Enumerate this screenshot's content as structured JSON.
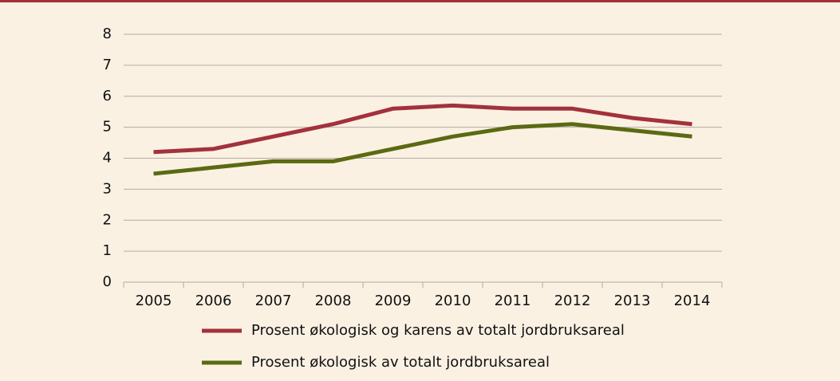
{
  "chart_data": {
    "type": "line",
    "categories": [
      "2005",
      "2006",
      "2007",
      "2008",
      "2009",
      "2010",
      "2011",
      "2012",
      "2013",
      "2014"
    ],
    "series": [
      {
        "name": "Prosent økologisk og karens av totalt jordbruksareal",
        "color": "#a3313b",
        "values": [
          4.2,
          4.3,
          4.7,
          5.1,
          5.6,
          5.7,
          5.6,
          5.6,
          5.3,
          5.1
        ]
      },
      {
        "name": "Prosent økologisk av totalt jordbruksareal",
        "color": "#5b6a12",
        "values": [
          3.5,
          3.7,
          3.9,
          3.9,
          4.3,
          4.7,
          5.0,
          5.1,
          4.9,
          4.7
        ]
      }
    ],
    "ylim": [
      0,
      8
    ],
    "yticks": [
      0,
      1,
      2,
      3,
      4,
      5,
      6,
      7,
      8
    ],
    "grid": true,
    "legend": "bottom"
  }
}
